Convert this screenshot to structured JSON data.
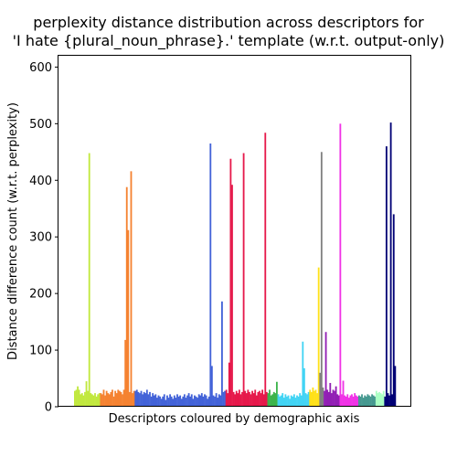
{
  "chart_data": {
    "type": "bar",
    "title_lines": [
      "perplexity distance distribution across descriptors for",
      "'I hate {plural_noun_phrase}.' template (w.r.t. output-only)"
    ],
    "xlabel": "Descriptors coloured by demographic axis",
    "ylabel": "Distance difference count (w.r.t. perplexity)",
    "ylim": [
      0,
      620
    ],
    "yticks": [
      0,
      100,
      200,
      300,
      400,
      500,
      600
    ],
    "xticks": [],
    "grid": false,
    "groups": [
      {
        "color": "#c1e83e",
        "values": [
          28,
          30,
          36,
          30,
          22,
          24,
          20,
          26,
          45,
          28,
          448,
          24,
          22,
          20,
          24,
          18,
          22,
          24
        ]
      },
      {
        "color": "#f58231",
        "values": [
          24,
          22,
          30,
          20,
          28,
          24,
          22,
          26,
          30,
          18,
          28,
          24,
          30,
          28,
          26,
          22,
          30,
          118,
          388,
          312,
          26,
          416,
          24,
          28
        ]
      },
      {
        "color": "#4363d8",
        "values": [
          28,
          30,
          26,
          24,
          28,
          22,
          26,
          24,
          30,
          22,
          26,
          18,
          24,
          20,
          22,
          16,
          20,
          18,
          14,
          18,
          22,
          12,
          20,
          16,
          22,
          18,
          14,
          20,
          16,
          22,
          18,
          20,
          14,
          18,
          22,
          16,
          20,
          24,
          18,
          22,
          14,
          20,
          18,
          16,
          22,
          20,
          24,
          18,
          22,
          20,
          14,
          18,
          465,
          72,
          20,
          18,
          24,
          16,
          22,
          20,
          186,
          26,
          28
        ]
      },
      {
        "color": "#e6194b",
        "values": [
          30,
          24,
          78,
          438,
          392,
          26,
          22,
          28,
          24,
          30,
          22,
          26,
          448,
          28,
          24,
          30,
          26,
          22,
          28,
          24,
          30,
          20,
          26,
          28,
          24,
          30,
          22,
          484,
          26
        ]
      },
      {
        "color": "#3cb44b",
        "values": [
          24,
          30,
          20,
          22,
          26,
          24,
          44
        ]
      },
      {
        "color": "#42d4f4",
        "values": [
          22,
          18,
          20,
          24,
          16,
          22,
          18,
          20,
          14,
          20,
          18,
          22,
          16,
          20,
          18,
          24,
          20,
          115,
          68,
          24,
          22,
          26
        ]
      },
      {
        "color": "#ffe119",
        "values": [
          30,
          26,
          34,
          28,
          30,
          24,
          246
        ]
      },
      {
        "color": "#808080",
        "values": [
          60,
          450,
          34
        ]
      },
      {
        "color": "#911eb4",
        "values": [
          28,
          132,
          30,
          26,
          42,
          24,
          30,
          28,
          36,
          22,
          20
        ]
      },
      {
        "color": "#f032e6",
        "values": [
          500,
          22,
          46,
          20,
          18,
          22,
          16,
          20,
          22,
          18,
          24,
          20,
          18
        ]
      },
      {
        "color": "#469990",
        "values": [
          20,
          18,
          22,
          16,
          20,
          18,
          22,
          20,
          18,
          22,
          20,
          18
        ]
      },
      {
        "color": "#aaffc3",
        "values": [
          28,
          24,
          26,
          24,
          22,
          28
        ]
      },
      {
        "color": "#000075",
        "values": [
          18,
          460,
          24,
          20,
          502,
          22,
          340,
          72
        ]
      }
    ]
  }
}
